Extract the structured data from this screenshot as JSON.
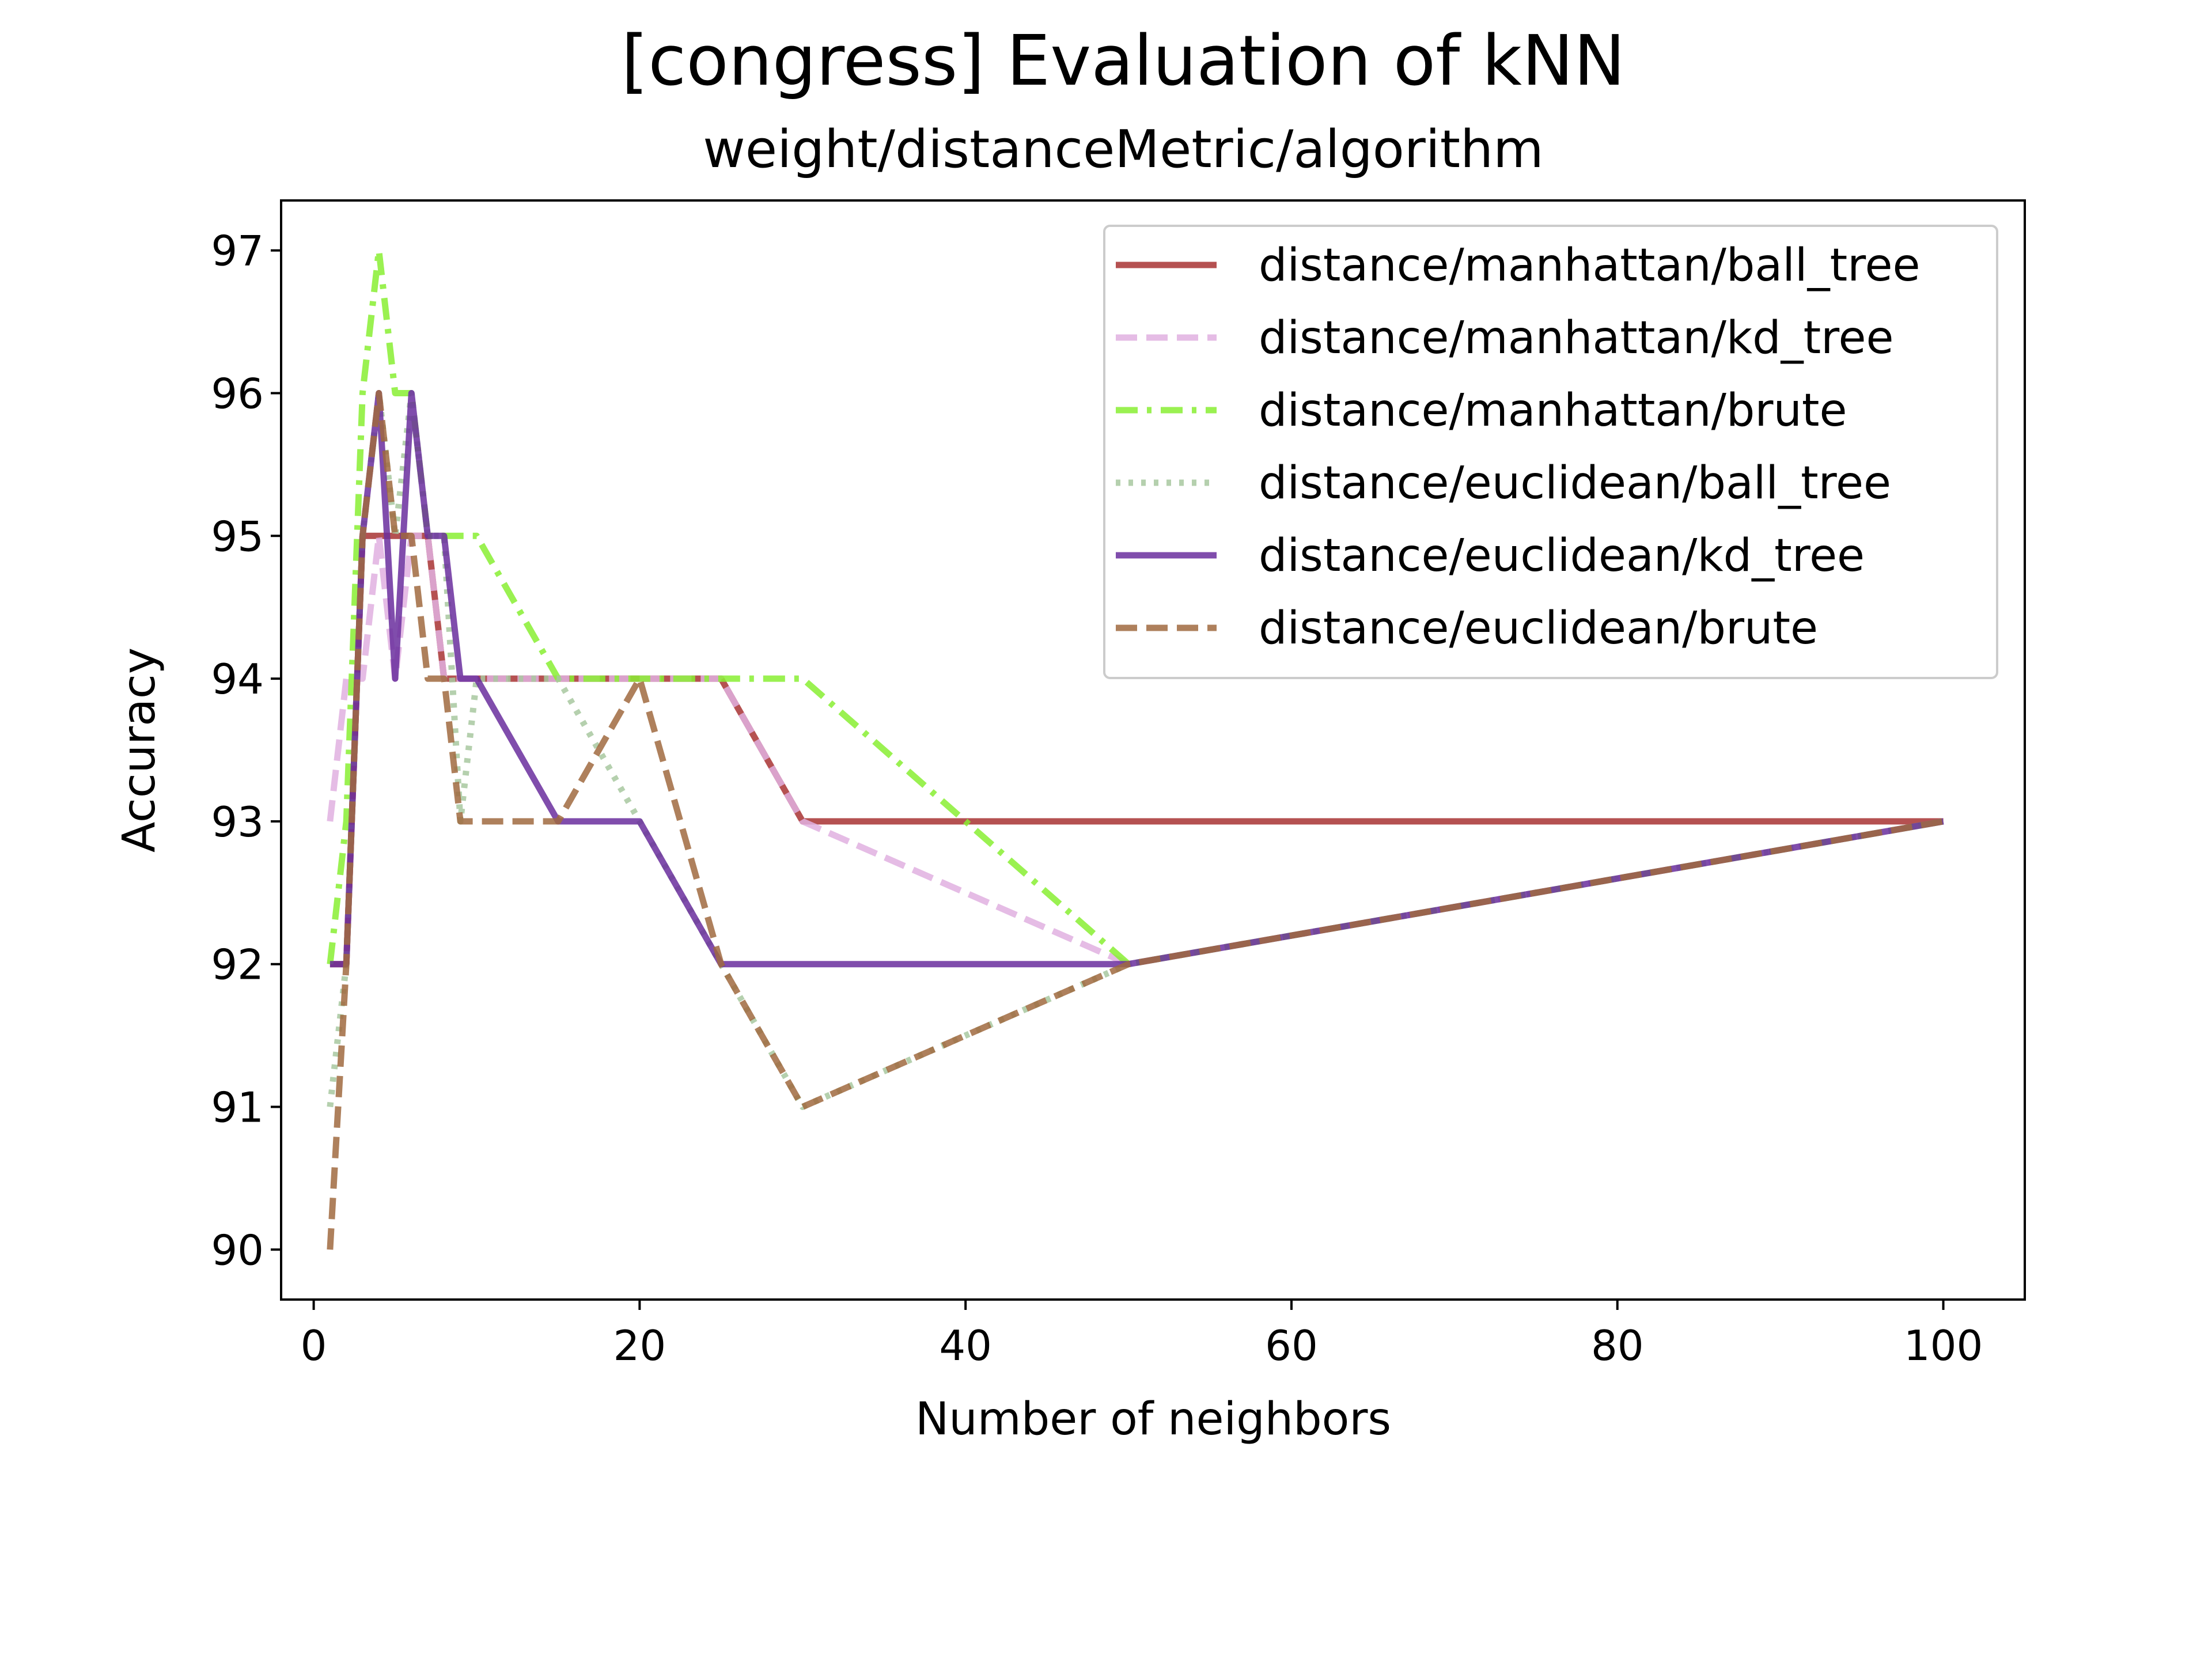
{
  "chart_data": {
    "type": "line",
    "title": "[congress] Evaluation of kNN",
    "subtitle": "weight/distanceMetric/algorithm",
    "xlabel": "Number of neighbors",
    "ylabel": "Accuracy",
    "xlim": [
      -2,
      105
    ],
    "ylim": [
      89.65,
      97.35
    ],
    "xticks": [
      0,
      20,
      40,
      60,
      80,
      100
    ],
    "yticks": [
      90,
      91,
      92,
      93,
      94,
      95,
      96,
      97
    ],
    "grid": false,
    "legend_position": "top-right",
    "x": [
      1,
      2,
      3,
      4,
      5,
      6,
      7,
      8,
      9,
      10,
      15,
      20,
      25,
      30,
      50,
      100
    ],
    "series": [
      {
        "name": "distance/manhattan/ball_tree",
        "color": "#a83232",
        "dash": "solid",
        "values": [
          92,
          92,
          95,
          95,
          95,
          95,
          95,
          94,
          94,
          94,
          94,
          94,
          94,
          93,
          93,
          93
        ]
      },
      {
        "name": "distance/manhattan/kd_tree",
        "color": "#e0b0e0",
        "dash": "dashed",
        "values": [
          93,
          94,
          94,
          95,
          94,
          95,
          95,
          94,
          94,
          94,
          94,
          94,
          94,
          93,
          92,
          93
        ]
      },
      {
        "name": "distance/manhattan/brute",
        "color": "#88ee33",
        "dash": "dashdot",
        "values": [
          92,
          93,
          96,
          97,
          96,
          96,
          95,
          95,
          95,
          95,
          94,
          94,
          94,
          94,
          92,
          93
        ]
      },
      {
        "name": "distance/euclidean/ball_tree",
        "color": "#a8c8a0",
        "dash": "dotted",
        "values": [
          91,
          92,
          95,
          96,
          95,
          96,
          95,
          95,
          93,
          94,
          94,
          93,
          92,
          91,
          92,
          93
        ]
      },
      {
        "name": "distance/euclidean/kd_tree",
        "color": "#6a2e9e",
        "dash": "solid",
        "values": [
          92,
          92,
          95,
          96,
          94,
          96,
          95,
          95,
          94,
          94,
          93,
          93,
          92,
          92,
          92,
          93
        ]
      },
      {
        "name": "distance/euclidean/brute",
        "color": "#a06a40",
        "dash": "dashed",
        "values": [
          90,
          92,
          95,
          96,
          95,
          95,
          94,
          94,
          93,
          93,
          93,
          94,
          92,
          91,
          92,
          93
        ]
      }
    ]
  }
}
